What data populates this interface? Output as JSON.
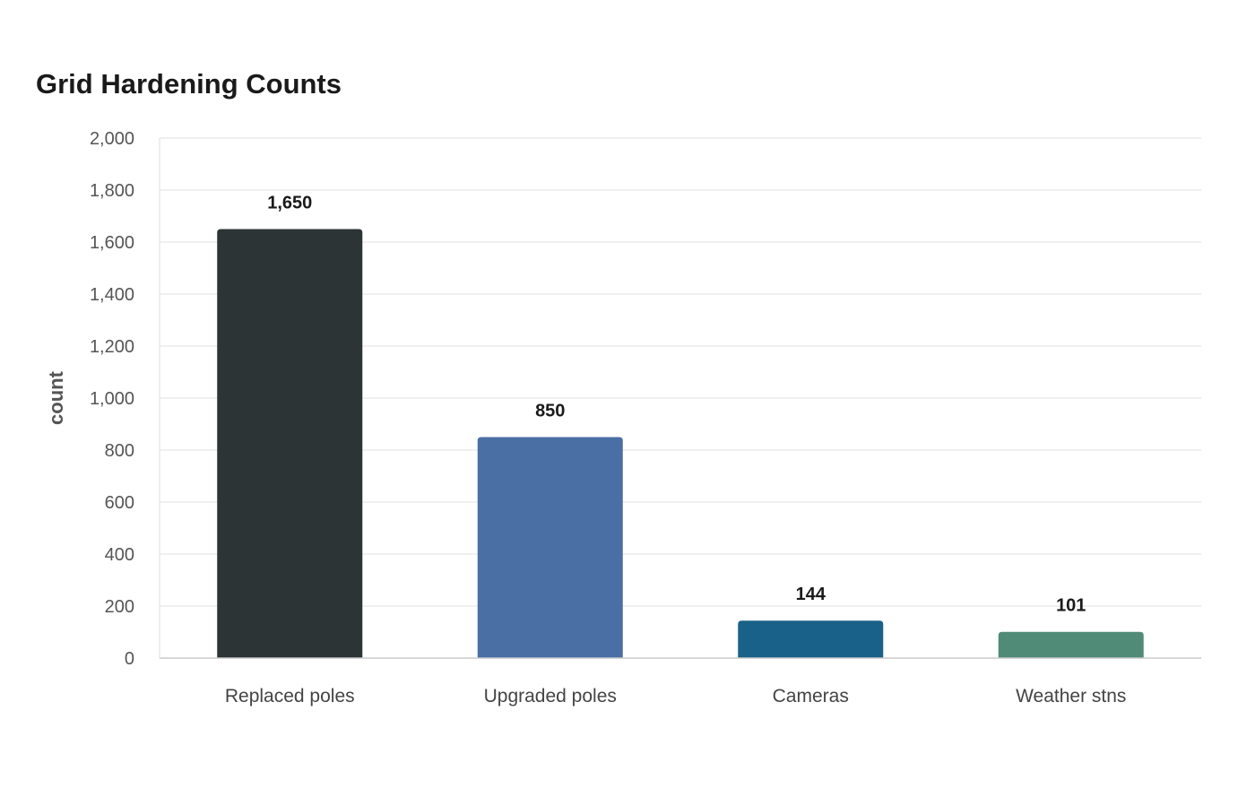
{
  "chart_data": {
    "type": "bar",
    "title": "Grid Hardening Counts",
    "xlabel": "",
    "ylabel": "count",
    "categories": [
      "Replaced poles",
      "Upgraded poles",
      "Cameras",
      "Weather stns"
    ],
    "values": [
      1650,
      850,
      144,
      101
    ],
    "value_labels": [
      "1,650",
      "850",
      "144",
      "101"
    ],
    "colors": [
      "#2d3436",
      "#4a6fa5",
      "#1a6189",
      "#4f8b77"
    ],
    "ylim": [
      0,
      2000
    ],
    "yticks": [
      0,
      200,
      400,
      600,
      800,
      1000,
      1200,
      1400,
      1600,
      1800,
      2000
    ],
    "ytick_labels": [
      "0",
      "200",
      "400",
      "600",
      "800",
      "1,000",
      "1,200",
      "1,400",
      "1,600",
      "1,800",
      "2,000"
    ],
    "grid": true,
    "legend": "none"
  }
}
